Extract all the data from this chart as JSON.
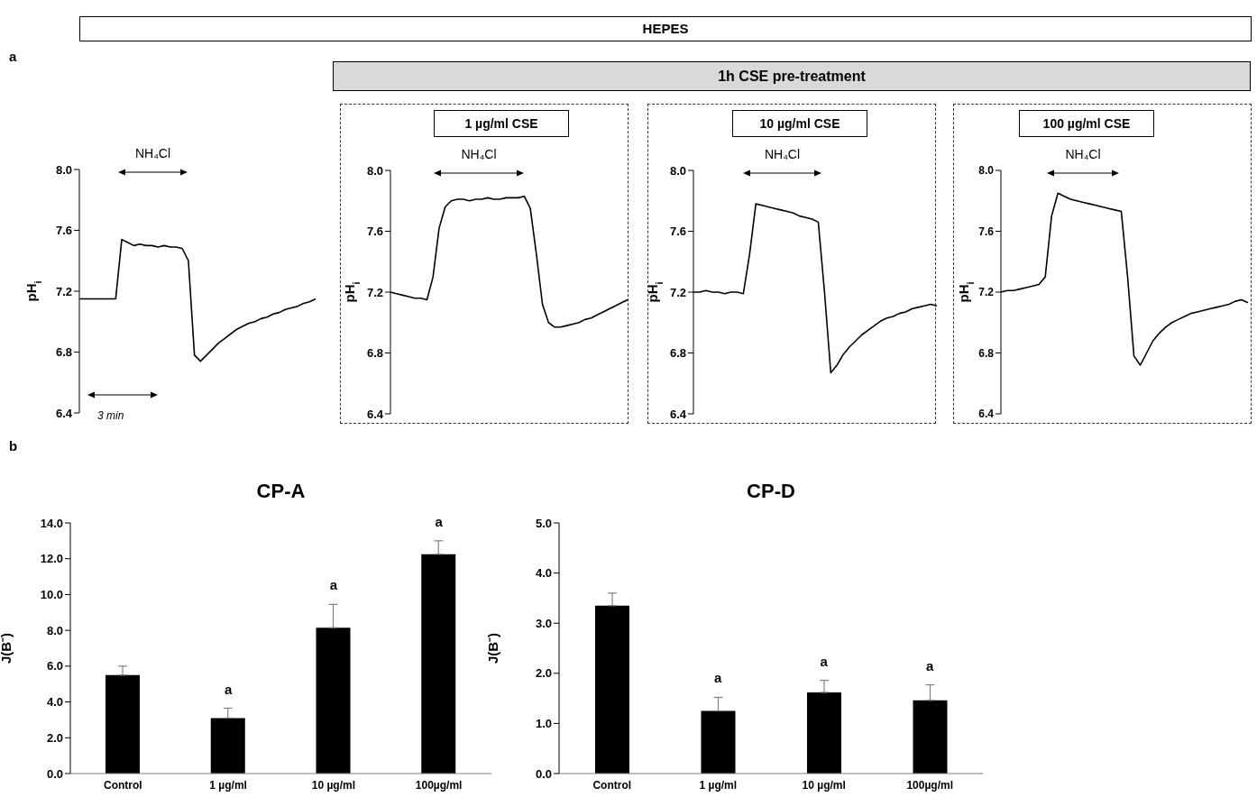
{
  "chart_data": [
    {
      "type": "line",
      "ylabel": "pH$_{i}$",
      "annotations": [
        "HEPES",
        "a",
        "NH₄Cl",
        "3 min"
      ],
      "tick_labels": "y",
      "categories": [
        null,
        null,
        null,
        null,
        null,
        null,
        null,
        null,
        null,
        null,
        null,
        null,
        null,
        null,
        null,
        null,
        null,
        null,
        null,
        null,
        null,
        null,
        null,
        null,
        null,
        null,
        null,
        null,
        null,
        null,
        null,
        null,
        null,
        null,
        null,
        null,
        null,
        null,
        null,
        null
      ],
      "ylim": [
        6.4,
        8.0
      ],
      "yticks": [
        {
          "value": 6.4,
          "label": "6.4"
        },
        {
          "value": 6.8,
          "label": "6.8"
        },
        {
          "value": 7.2,
          "label": "7.2"
        },
        {
          "value": 7.6,
          "label": "7.6"
        },
        {
          "value": 8.0,
          "label": "8.0"
        }
      ],
      "series": [
        {
          "color": "#000000",
          "values": [
            7.15,
            7.15,
            7.15,
            7.15,
            7.15,
            7.15,
            7.15,
            7.54,
            7.52,
            7.5,
            7.51,
            7.5,
            7.5,
            7.49,
            7.5,
            7.49,
            7.49,
            7.48,
            7.4,
            6.78,
            6.74,
            6.78,
            6.82,
            6.86,
            6.89,
            6.92,
            6.95,
            6.97,
            6.99,
            7.0,
            7.02,
            7.03,
            7.05,
            7.06,
            7.08,
            7.09,
            7.1,
            7.12,
            7.13,
            7.15
          ]
        }
      ]
    },
    {
      "type": "line",
      "title": "1 µg/ml CSE",
      "ylabel": "pH$_{i}$",
      "annotations": [
        "1h CSE pre-treatment",
        "NH₄Cl"
      ],
      "tick_labels": "y",
      "categories": [
        null,
        null,
        null,
        null,
        null,
        null,
        null,
        null,
        null,
        null,
        null,
        null,
        null,
        null,
        null,
        null,
        null,
        null,
        null,
        null,
        null,
        null,
        null,
        null,
        null,
        null,
        null,
        null,
        null,
        null,
        null,
        null,
        null,
        null,
        null,
        null,
        null,
        null,
        null,
        null
      ],
      "ylim": [
        6.4,
        8.0
      ],
      "yticks": [
        {
          "value": 6.4,
          "label": "6.4"
        },
        {
          "value": 6.8,
          "label": "6.8"
        },
        {
          "value": 7.2,
          "label": "7.2"
        },
        {
          "value": 7.6,
          "label": "7.6"
        },
        {
          "value": 8.0,
          "label": "8.0"
        }
      ],
      "series": [
        {
          "color": "#000000",
          "values": [
            7.2,
            7.19,
            7.18,
            7.17,
            7.16,
            7.16,
            7.15,
            7.3,
            7.62,
            7.76,
            7.8,
            7.81,
            7.81,
            7.8,
            7.81,
            7.81,
            7.82,
            7.81,
            7.81,
            7.82,
            7.82,
            7.82,
            7.83,
            7.75,
            7.45,
            7.12,
            7.0,
            6.97,
            6.97,
            6.98,
            6.99,
            7.0,
            7.02,
            7.03,
            7.05,
            7.07,
            7.09,
            7.11,
            7.13,
            7.15
          ]
        }
      ]
    },
    {
      "type": "line",
      "title": "10 µg/ml CSE",
      "ylabel": "pH$_{i}$",
      "annotations": [
        "NH₄Cl"
      ],
      "tick_labels": "y",
      "categories": [
        null,
        null,
        null,
        null,
        null,
        null,
        null,
        null,
        null,
        null,
        null,
        null,
        null,
        null,
        null,
        null,
        null,
        null,
        null,
        null,
        null,
        null,
        null,
        null,
        null,
        null,
        null,
        null,
        null,
        null,
        null,
        null,
        null,
        null,
        null,
        null,
        null,
        null,
        null,
        null
      ],
      "ylim": [
        6.4,
        8.0
      ],
      "yticks": [
        {
          "value": 6.4,
          "label": "6.4"
        },
        {
          "value": 6.8,
          "label": "6.8"
        },
        {
          "value": 7.2,
          "label": "7.2"
        },
        {
          "value": 7.6,
          "label": "7.6"
        },
        {
          "value": 8.0,
          "label": "8.0"
        }
      ],
      "series": [
        {
          "color": "#000000",
          "values": [
            7.2,
            7.2,
            7.21,
            7.2,
            7.2,
            7.19,
            7.2,
            7.2,
            7.19,
            7.45,
            7.78,
            7.77,
            7.76,
            7.75,
            7.74,
            7.73,
            7.72,
            7.7,
            7.69,
            7.68,
            7.66,
            7.2,
            6.67,
            6.72,
            6.79,
            6.84,
            6.88,
            6.92,
            6.95,
            6.98,
            7.01,
            7.03,
            7.04,
            7.06,
            7.07,
            7.09,
            7.1,
            7.11,
            7.12,
            7.11
          ]
        }
      ]
    },
    {
      "type": "line",
      "title": "100 µg/ml CSE",
      "ylabel": "pH$_{i}$",
      "annotations": [
        "NH₄Cl"
      ],
      "tick_labels": "y",
      "categories": [
        null,
        null,
        null,
        null,
        null,
        null,
        null,
        null,
        null,
        null,
        null,
        null,
        null,
        null,
        null,
        null,
        null,
        null,
        null,
        null,
        null,
        null,
        null,
        null,
        null,
        null,
        null,
        null,
        null,
        null,
        null,
        null,
        null,
        null,
        null,
        null,
        null,
        null,
        null,
        null
      ],
      "ylim": [
        6.4,
        8.0
      ],
      "yticks": [
        {
          "value": 6.4,
          "label": "6.4"
        },
        {
          "value": 6.8,
          "label": "6.8"
        },
        {
          "value": 7.2,
          "label": "7.2"
        },
        {
          "value": 7.6,
          "label": "7.6"
        },
        {
          "value": 8.0,
          "label": "8.0"
        }
      ],
      "series": [
        {
          "color": "#000000",
          "values": [
            7.2,
            7.21,
            7.21,
            7.22,
            7.23,
            7.24,
            7.25,
            7.3,
            7.7,
            7.85,
            7.83,
            7.81,
            7.8,
            7.79,
            7.78,
            7.77,
            7.76,
            7.75,
            7.74,
            7.73,
            7.3,
            6.78,
            6.72,
            6.8,
            6.88,
            6.93,
            6.97,
            7.0,
            7.02,
            7.04,
            7.06,
            7.07,
            7.08,
            7.09,
            7.1,
            7.11,
            7.12,
            7.14,
            7.15,
            7.13
          ]
        }
      ]
    },
    {
      "type": "bar",
      "title": "CP-A",
      "ylabel": "J(B⁻)",
      "categories": [
        "Control",
        "1 µg/ml",
        "10 µg/ml",
        "100µg/ml"
      ],
      "values": [
        5.5,
        3.1,
        8.15,
        12.25
      ],
      "errors": [
        [
          5.5,
          6.0
        ],
        [
          3.1,
          3.65
        ],
        [
          8.15,
          9.45
        ],
        [
          12.25,
          13.0
        ]
      ],
      "color": "#000000",
      "ylim": [
        0,
        14
      ],
      "yticks": [
        {
          "value": 0,
          "label": "0.0"
        },
        {
          "value": 2,
          "label": "2.0"
        },
        {
          "value": 4,
          "label": "4.0"
        },
        {
          "value": 6,
          "label": "6.0"
        },
        {
          "value": 8,
          "label": "8.0"
        },
        {
          "value": 10,
          "label": "10.0"
        },
        {
          "value": 12,
          "label": "12.0"
        },
        {
          "value": 14,
          "label": "14.0"
        }
      ],
      "annotations": [
        "b",
        "a",
        "a",
        "a"
      ]
    },
    {
      "type": "bar",
      "title": "CP-D",
      "ylabel": "J(B⁻)",
      "categories": [
        "Control",
        "1 µg/ml",
        "10 µg/ml",
        "100µg/ml"
      ],
      "values": [
        3.35,
        1.25,
        1.62,
        1.46
      ],
      "errors": [
        [
          3.35,
          3.6
        ],
        [
          1.25,
          1.52
        ],
        [
          1.62,
          1.86
        ],
        [
          1.46,
          1.77
        ]
      ],
      "color": "#000000",
      "ylim": [
        0,
        5
      ],
      "yticks": [
        {
          "value": 0,
          "label": "0.0"
        },
        {
          "value": 1,
          "label": "1.0"
        },
        {
          "value": 2,
          "label": "2.0"
        },
        {
          "value": 3,
          "label": "3.0"
        },
        {
          "value": 4,
          "label": "4.0"
        },
        {
          "value": 5,
          "label": "5.0"
        }
      ],
      "annotations": [
        "a",
        "a",
        "a"
      ]
    }
  ]
}
